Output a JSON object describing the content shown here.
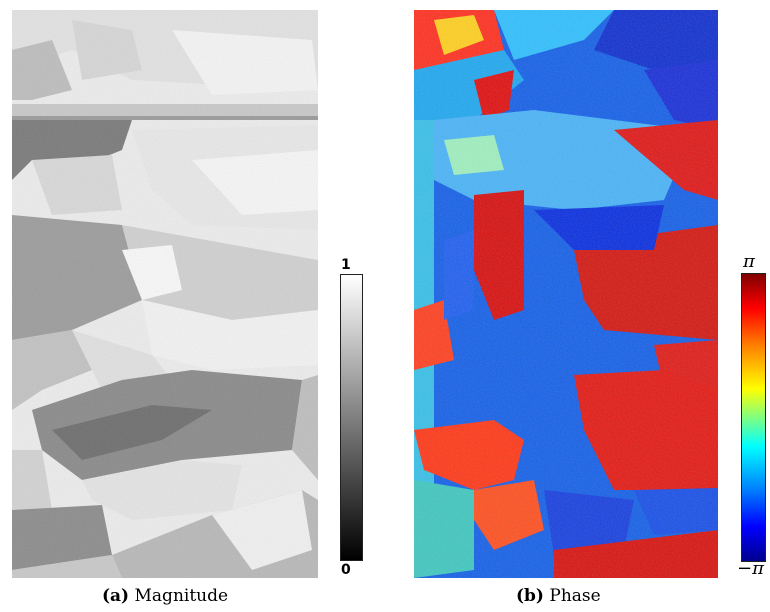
{
  "figure": {
    "panels": [
      {
        "id": "a",
        "label": "(a)",
        "caption": "Magnitude",
        "colorbar": {
          "max_label": "1",
          "min_label": "0",
          "colormap": "grayscale"
        }
      },
      {
        "id": "b",
        "label": "(b)",
        "caption": "Phase",
        "colorbar": {
          "max_label": "π",
          "min_label": "−π",
          "colormap": "jet"
        }
      }
    ]
  },
  "colors": {
    "phase_red": "#e0140c",
    "phase_blue": "#1040e0",
    "phase_cyan": "#3fb0ff"
  }
}
